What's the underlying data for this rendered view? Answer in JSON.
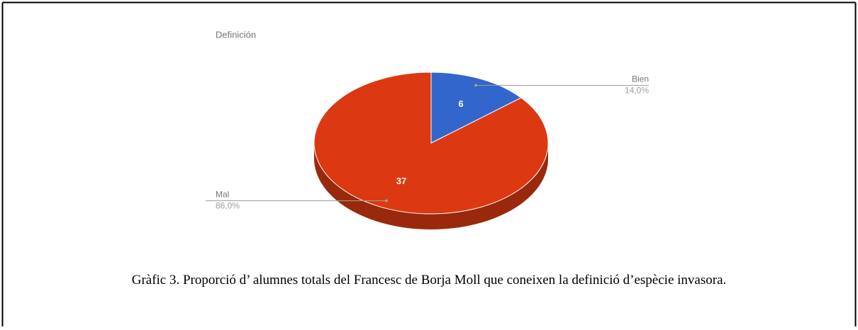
{
  "chart_data": {
    "type": "pie3d",
    "title": "Definición",
    "categories": [
      "Bien",
      "Mal"
    ],
    "values": [
      6,
      37
    ],
    "percent_labels": [
      "14,0%",
      "86,0%"
    ],
    "colors": [
      "#3366cc",
      "#dc3912"
    ],
    "side_colors": [
      "#23478f",
      "#9a280c"
    ]
  },
  "caption": "Gràfic 3. Proporció d’ alumnes totals del Francesc de Borja Moll que coneixen la definició d’espècie invasora."
}
